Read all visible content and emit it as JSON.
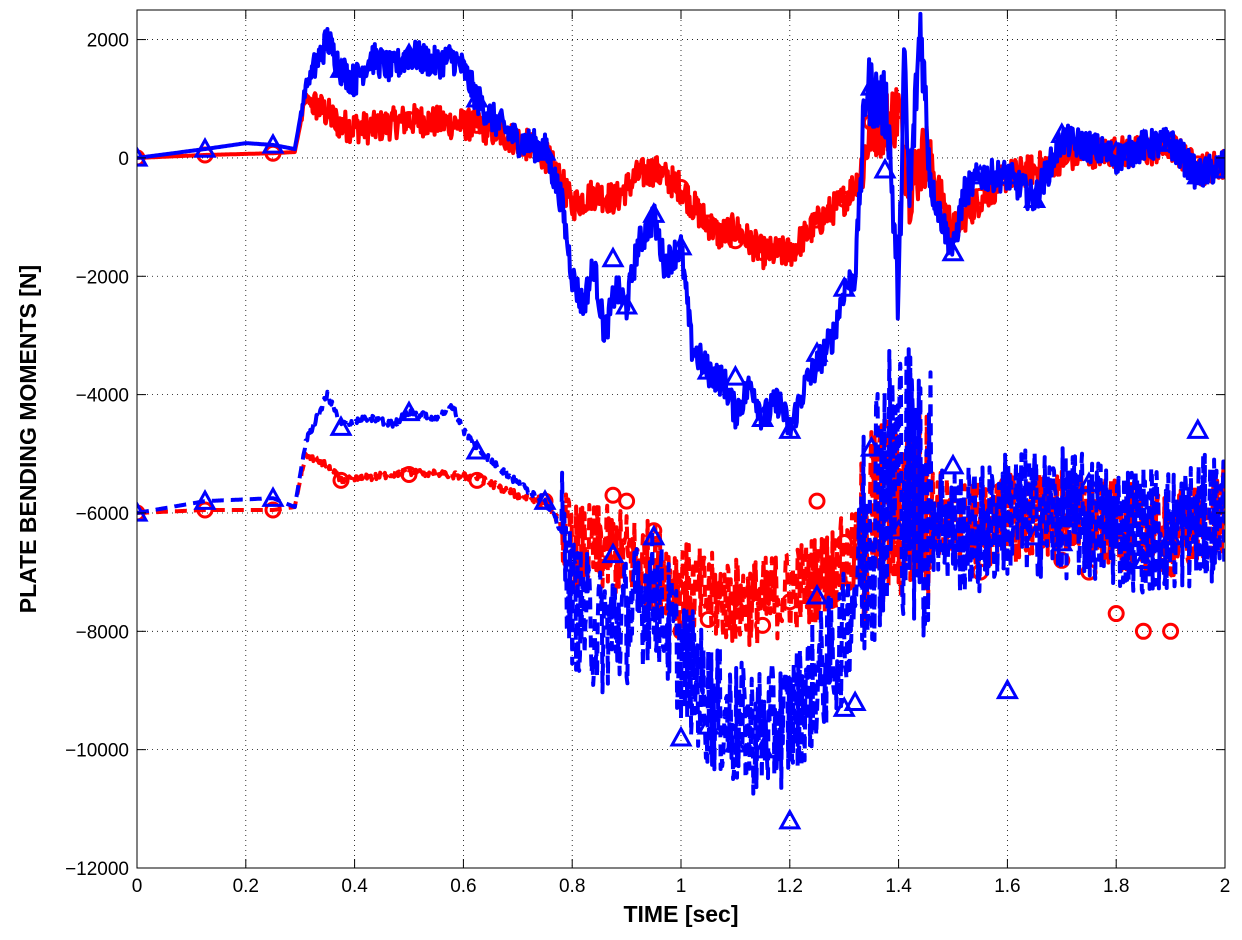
{
  "chart_data": {
    "type": "line",
    "title": "",
    "xlabel": "TIME [sec]",
    "ylabel": "PLATE BENDING MOMENTS [N]",
    "xlim": [
      0,
      2
    ],
    "ylim": [
      -12000,
      2500
    ],
    "xticks": [
      0,
      0.2,
      0.4,
      0.6,
      0.8,
      1,
      1.2,
      1.4,
      1.6,
      1.8,
      2
    ],
    "xtick_labels": [
      "0",
      "0.2",
      "0.4",
      "0.6",
      "0.8",
      "1",
      "1.2",
      "1.4",
      "1.6",
      "1.8",
      "2"
    ],
    "yticks": [
      -12000,
      -10000,
      -8000,
      -6000,
      -4000,
      -2000,
      0,
      2000
    ],
    "ytick_labels": [
      "−12000",
      "−10000",
      "−8000",
      "−6000",
      "−4000",
      "−2000",
      "0",
      "2000"
    ],
    "grid": true,
    "series": [
      {
        "style": "solid",
        "color": "#ff0000",
        "marker": "circle",
        "x": [
          0,
          0.125,
          0.25,
          0.29,
          0.31,
          0.35,
          0.375,
          0.43,
          0.5,
          0.56,
          0.625,
          0.7,
          0.75,
          0.78,
          0.8,
          0.84,
          0.88,
          0.92,
          0.95,
          1.0,
          1.03,
          1.07,
          1.1,
          1.15,
          1.2,
          1.25,
          1.3,
          1.33,
          1.35,
          1.38,
          1.4,
          1.42,
          1.45,
          1.5,
          1.55,
          1.6,
          1.65,
          1.7,
          1.75,
          1.8,
          1.85,
          1.9,
          1.95,
          2.0
        ],
        "y": [
          0,
          50,
          80,
          100,
          1000,
          750,
          550,
          500,
          650,
          600,
          550,
          300,
          50,
          -400,
          -800,
          -600,
          -700,
          -300,
          -200,
          -500,
          -900,
          -1300,
          -1200,
          -1600,
          -1600,
          -1100,
          -700,
          -300,
          600,
          600,
          800,
          -500,
          100,
          -1200,
          -700,
          -300,
          -200,
          0,
          100,
          100,
          100,
          200,
          -200,
          -100
        ],
        "markers": [
          [
            0,
            0
          ],
          [
            0.125,
            50
          ],
          [
            0.25,
            80
          ],
          [
            0.375,
            550
          ],
          [
            0.5,
            650
          ],
          [
            0.625,
            550
          ],
          [
            0.75,
            30
          ],
          [
            0.875,
            -700
          ],
          [
            0.95,
            -200
          ],
          [
            1.0,
            -500
          ],
          [
            1.05,
            -1100
          ],
          [
            1.1,
            -1400
          ],
          [
            1.15,
            -1600
          ],
          [
            1.2,
            -1600
          ],
          [
            1.25,
            -1050
          ],
          [
            1.3,
            -700
          ],
          [
            1.35,
            600
          ],
          [
            1.375,
            600
          ],
          [
            1.4,
            800
          ],
          [
            1.5,
            -1200
          ],
          [
            1.55,
            -650
          ],
          [
            1.6,
            -350
          ],
          [
            1.7,
            0
          ],
          [
            1.75,
            80
          ],
          [
            1.8,
            50
          ],
          [
            1.85,
            100
          ],
          [
            1.9,
            150
          ],
          [
            1.95,
            -100
          ],
          [
            2.0,
            -100
          ]
        ]
      },
      {
        "style": "solid",
        "color": "#0000ff",
        "marker": "triangle",
        "x": [
          0,
          0.125,
          0.2,
          0.25,
          0.29,
          0.31,
          0.34,
          0.35,
          0.375,
          0.4,
          0.43,
          0.47,
          0.5,
          0.55,
          0.58,
          0.6,
          0.625,
          0.65,
          0.7,
          0.75,
          0.78,
          0.8,
          0.82,
          0.84,
          0.86,
          0.88,
          0.9,
          0.92,
          0.95,
          0.97,
          1.0,
          1.02,
          1.05,
          1.08,
          1.1,
          1.13,
          1.15,
          1.18,
          1.2,
          1.23,
          1.25,
          1.28,
          1.3,
          1.32,
          1.34,
          1.36,
          1.38,
          1.4,
          1.41,
          1.42,
          1.44,
          1.46,
          1.5,
          1.52,
          1.55,
          1.6,
          1.65,
          1.7,
          1.75,
          1.8,
          1.85,
          1.9,
          1.95,
          2.0
        ],
        "y": [
          0,
          150,
          250,
          220,
          150,
          1200,
          1800,
          2000,
          1500,
          1300,
          1700,
          1500,
          1750,
          1600,
          1700,
          1500,
          1000,
          700,
          300,
          150,
          -700,
          -2000,
          -2500,
          -1800,
          -3000,
          -2200,
          -2500,
          -1500,
          -1000,
          -1800,
          -1500,
          -3200,
          -3600,
          -3800,
          -4300,
          -3800,
          -4400,
          -4100,
          -4600,
          -3800,
          -3500,
          -3000,
          -2200,
          -2000,
          1200,
          1000,
          800,
          -2500,
          1700,
          -800,
          2300,
          -500,
          -1600,
          -600,
          -300,
          -300,
          -700,
          300,
          200,
          0,
          200,
          250,
          -300,
          -100
        ],
        "markers": [
          [
            0,
            0
          ],
          [
            0.125,
            150
          ],
          [
            0.25,
            220
          ],
          [
            0.375,
            1500
          ],
          [
            0.5,
            1750
          ],
          [
            0.625,
            1000
          ],
          [
            0.75,
            100
          ],
          [
            0.875,
            -1700
          ],
          [
            0.9,
            -2500
          ],
          [
            0.95,
            -950
          ],
          [
            1.0,
            -1500
          ],
          [
            1.05,
            -3600
          ],
          [
            1.1,
            -3700
          ],
          [
            1.15,
            -4400
          ],
          [
            1.2,
            -4600
          ],
          [
            1.25,
            -3300
          ],
          [
            1.3,
            -2200
          ],
          [
            1.35,
            1200
          ],
          [
            1.375,
            -200
          ],
          [
            1.5,
            -1600
          ],
          [
            1.55,
            -300
          ],
          [
            1.6,
            -300
          ],
          [
            1.65,
            -700
          ],
          [
            1.7,
            400
          ],
          [
            1.75,
            200
          ],
          [
            1.8,
            100
          ],
          [
            1.85,
            300
          ],
          [
            1.9,
            250
          ],
          [
            1.95,
            -300
          ],
          [
            2.0,
            -200
          ]
        ]
      },
      {
        "style": "dashed",
        "color": "#ff0000",
        "marker": "circle",
        "noise": 1500,
        "noise_start": 0.78,
        "x": [
          0,
          0.125,
          0.25,
          0.29,
          0.31,
          0.35,
          0.375,
          0.43,
          0.5,
          0.56,
          0.625,
          0.7,
          0.75,
          0.78,
          0.8,
          0.85,
          0.9,
          0.95,
          1.0,
          1.05,
          1.1,
          1.15,
          1.2,
          1.25,
          1.3,
          1.33,
          1.35,
          1.4,
          1.45,
          1.5,
          1.55,
          1.6,
          1.7,
          1.8,
          1.9,
          2.0
        ],
        "y": [
          -6000,
          -5950,
          -5950,
          -5900,
          -5000,
          -5200,
          -5450,
          -5400,
          -5300,
          -5350,
          -5400,
          -5700,
          -5800,
          -6200,
          -6600,
          -6600,
          -6700,
          -6900,
          -7200,
          -7400,
          -7500,
          -7500,
          -7300,
          -7100,
          -6800,
          -6700,
          -6000,
          -6000,
          -5800,
          -6200,
          -6200,
          -6100,
          -6000,
          -6200,
          -6400,
          -6000
        ],
        "markers": [
          [
            0,
            -6000
          ],
          [
            0.125,
            -5950
          ],
          [
            0.25,
            -5950
          ],
          [
            0.375,
            -5450
          ],
          [
            0.5,
            -5350
          ],
          [
            0.625,
            -5450
          ],
          [
            0.75,
            -5800
          ],
          [
            0.875,
            -5700
          ],
          [
            0.9,
            -5800
          ],
          [
            0.95,
            -6300
          ],
          [
            1.0,
            -8000
          ],
          [
            1.05,
            -7800
          ],
          [
            1.1,
            -7600
          ],
          [
            1.15,
            -7900
          ],
          [
            1.2,
            -7500
          ],
          [
            1.25,
            -5800
          ],
          [
            1.3,
            -6500
          ],
          [
            1.35,
            -6100
          ],
          [
            1.4,
            -6600
          ],
          [
            1.45,
            -6300
          ],
          [
            1.5,
            -6500
          ],
          [
            1.55,
            -7000
          ],
          [
            1.6,
            -5500
          ],
          [
            1.65,
            -6000
          ],
          [
            1.7,
            -6800
          ],
          [
            1.75,
            -7000
          ],
          [
            1.8,
            -7700
          ],
          [
            1.85,
            -8000
          ],
          [
            1.9,
            -8000
          ],
          [
            2.0,
            -6300
          ]
        ]
      },
      {
        "style": "dashed",
        "color": "#0000ff",
        "marker": "triangle",
        "noise": 2200,
        "noise_start": 0.78,
        "x": [
          0,
          0.125,
          0.25,
          0.29,
          0.31,
          0.34,
          0.35,
          0.375,
          0.43,
          0.47,
          0.5,
          0.55,
          0.58,
          0.6,
          0.625,
          0.65,
          0.7,
          0.75,
          0.78,
          0.8,
          0.85,
          0.9,
          0.95,
          1.0,
          1.05,
          1.1,
          1.15,
          1.2,
          1.25,
          1.3,
          1.33,
          1.35,
          1.4,
          1.45,
          1.5,
          1.55,
          1.6,
          1.7,
          1.8,
          1.9,
          2.0
        ],
        "y": [
          -6000,
          -5800,
          -5750,
          -5900,
          -4800,
          -4200,
          -4000,
          -4500,
          -4400,
          -4500,
          -4300,
          -4400,
          -4200,
          -4600,
          -4900,
          -5100,
          -5500,
          -5800,
          -6300,
          -7500,
          -8000,
          -7800,
          -7300,
          -8400,
          -9200,
          -9600,
          -9700,
          -9500,
          -8800,
          -8100,
          -6800,
          -5800,
          -5200,
          -5800,
          -6300,
          -6300,
          -6000,
          -6000,
          -6200,
          -6300,
          -6000
        ],
        "markers": [
          [
            0,
            -6000
          ],
          [
            0.125,
            -5800
          ],
          [
            0.25,
            -5750
          ],
          [
            0.375,
            -4550
          ],
          [
            0.5,
            -4300
          ],
          [
            0.625,
            -4950
          ],
          [
            0.75,
            -5800
          ],
          [
            0.875,
            -6700
          ],
          [
            0.95,
            -6400
          ],
          [
            1.0,
            -9800
          ],
          [
            1.05,
            -9600
          ],
          [
            1.1,
            -9900
          ],
          [
            1.15,
            -10000
          ],
          [
            1.2,
            -11200
          ],
          [
            1.25,
            -7400
          ],
          [
            1.3,
            -9300
          ],
          [
            1.32,
            -9200
          ],
          [
            1.35,
            -4900
          ],
          [
            1.4,
            -6300
          ],
          [
            1.45,
            -6000
          ],
          [
            1.5,
            -5200
          ],
          [
            1.55,
            -6400
          ],
          [
            1.6,
            -9000
          ],
          [
            1.65,
            -6400
          ],
          [
            1.7,
            -6500
          ],
          [
            1.75,
            -5500
          ],
          [
            1.8,
            -6300
          ],
          [
            1.85,
            -6800
          ],
          [
            1.9,
            -6400
          ],
          [
            1.95,
            -4600
          ],
          [
            2.0,
            -6000
          ]
        ]
      }
    ]
  }
}
